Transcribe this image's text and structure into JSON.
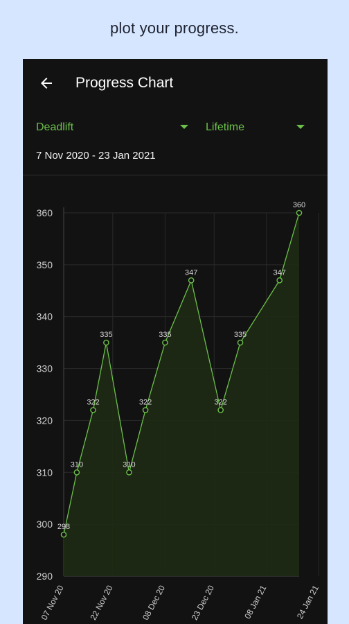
{
  "caption": "plot your progress.",
  "appbar": {
    "title": "Progress Chart",
    "back_icon": "arrow-left-icon"
  },
  "filters": {
    "exercise": "Deadlift",
    "period": "Lifetime",
    "dropdown_icon": "triangle-down-icon"
  },
  "date_range": "7 Nov 2020 - 23 Jan 2021",
  "colors": {
    "accent": "#6cc04a",
    "background": "#121212",
    "page_background": "#d6e6ff"
  },
  "chart_data": {
    "type": "area",
    "y_ticks": [
      290,
      300,
      310,
      320,
      330,
      340,
      350,
      360
    ],
    "ylim": [
      290,
      360
    ],
    "x_tick_labels": [
      "07 Nov 20",
      "22 Nov 20",
      "08 Dec 20",
      "23 Dec 20",
      "08 Jan 21",
      "24 Jan 21"
    ],
    "x_tick_dates": [
      "2020-11-07",
      "2020-11-22",
      "2020-12-08",
      "2020-12-23",
      "2021-01-08",
      "2021-01-24"
    ],
    "points": [
      {
        "x": "2020-11-07",
        "y": 298,
        "label": "298"
      },
      {
        "x": "2020-11-11",
        "y": 310,
        "label": "310"
      },
      {
        "x": "2020-11-16",
        "y": 322,
        "label": "322"
      },
      {
        "x": "2020-11-20",
        "y": 335,
        "label": "335"
      },
      {
        "x": "2020-11-27",
        "y": 310,
        "label": "310"
      },
      {
        "x": "2020-12-02",
        "y": 322,
        "label": "322"
      },
      {
        "x": "2020-12-08",
        "y": 335,
        "label": "335"
      },
      {
        "x": "2020-12-16",
        "y": 347,
        "label": "347"
      },
      {
        "x": "2020-12-25",
        "y": 322,
        "label": "322"
      },
      {
        "x": "2020-12-31",
        "y": 335,
        "label": "335"
      },
      {
        "x": "2021-01-12",
        "y": 347,
        "label": "347"
      },
      {
        "x": "2021-01-18",
        "y": 360,
        "label": "360"
      }
    ],
    "grid": true,
    "xlabel": "",
    "ylabel": ""
  }
}
